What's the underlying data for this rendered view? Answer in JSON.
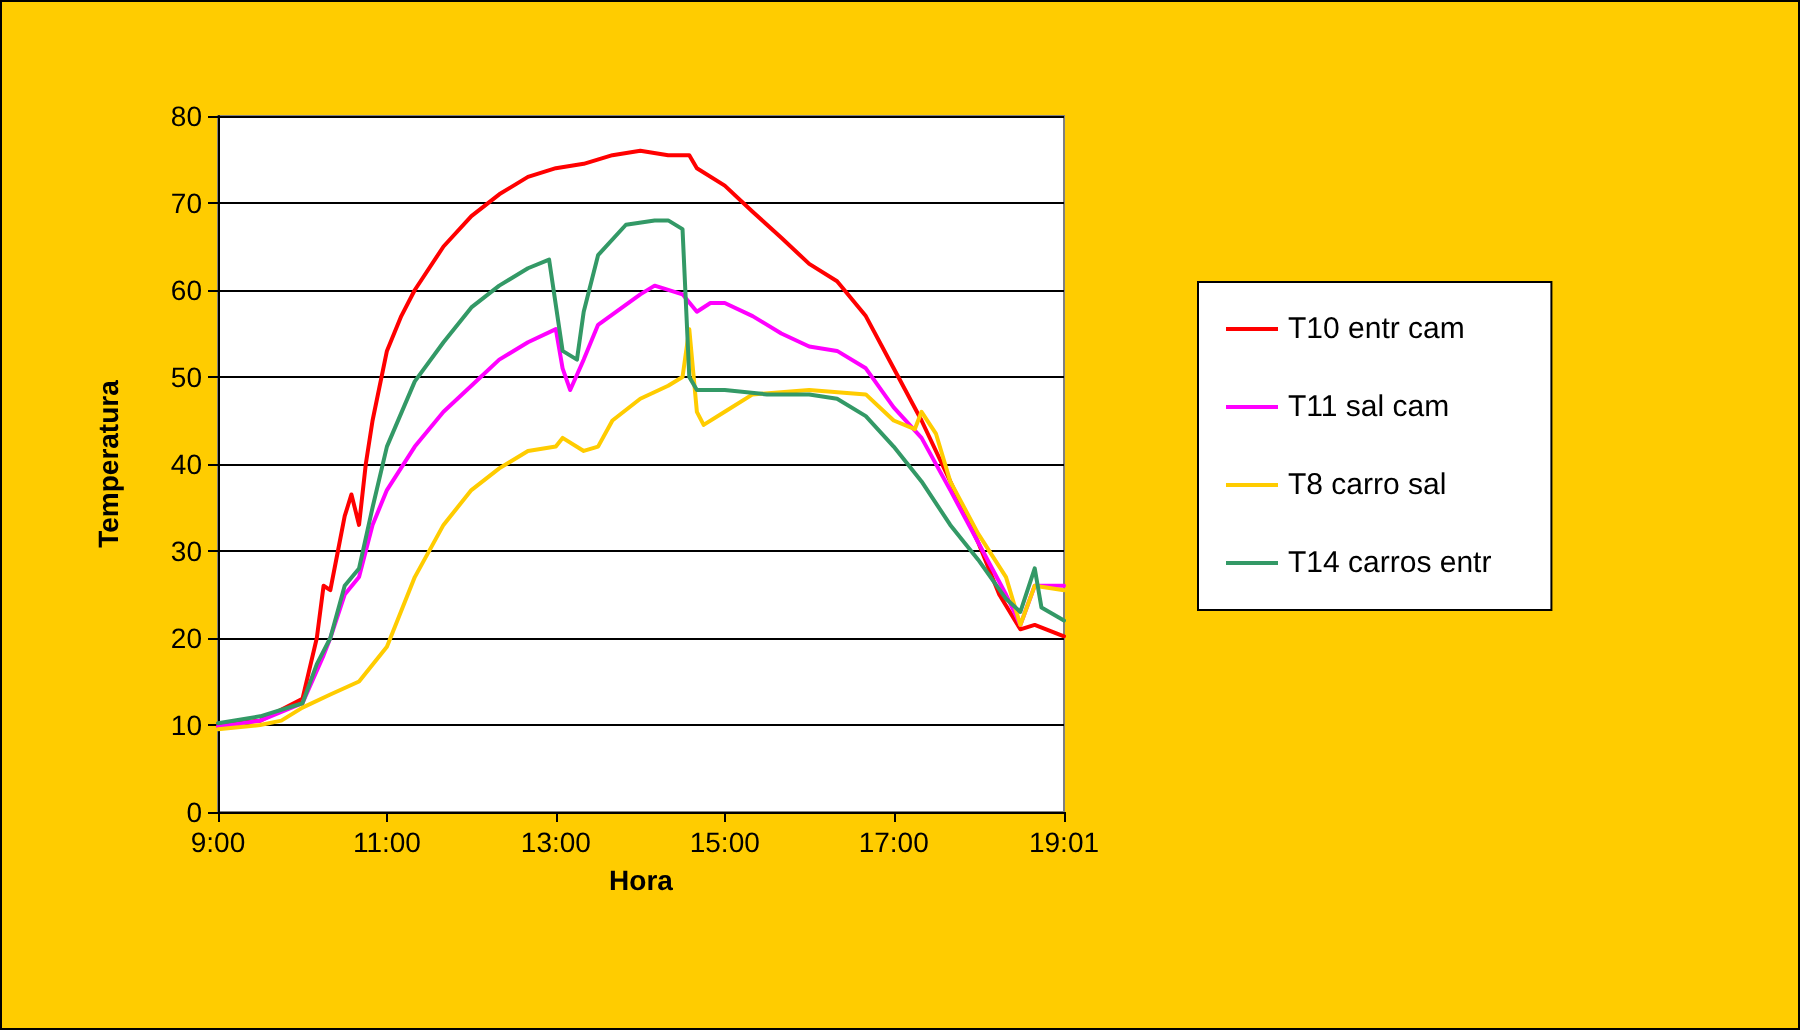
{
  "chart_data": {
    "type": "line",
    "xlabel": "Hora",
    "ylabel": "Temperatura",
    "xlim": [
      9,
      19.0167
    ],
    "xticks": [
      {
        "value": 9,
        "label": "9:00"
      },
      {
        "value": 11,
        "label": "11:00"
      },
      {
        "value": 13,
        "label": "13:00"
      },
      {
        "value": 15,
        "label": "15:00"
      },
      {
        "value": 17,
        "label": "17:00"
      },
      {
        "value": 19.0167,
        "label": "19:01"
      }
    ],
    "ylim": [
      0,
      80
    ],
    "yticks": [
      0,
      10,
      20,
      30,
      40,
      50,
      60,
      70,
      80
    ],
    "grid": "y",
    "legend": "right",
    "marker": "none",
    "line_style": "solid",
    "series": [
      {
        "name": "T10 entr cam",
        "color": "#ff0000",
        "x": [
          9,
          9.5,
          10,
          10.17,
          10.25,
          10.33,
          10.42,
          10.5,
          10.58,
          10.67,
          10.75,
          10.83,
          11,
          11.17,
          11.33,
          11.67,
          12,
          12.33,
          12.67,
          13,
          13.33,
          13.67,
          14,
          14.33,
          14.58,
          14.67,
          15,
          15.33,
          15.67,
          16,
          16.33,
          16.67,
          17,
          17.33,
          17.67,
          18,
          18.25,
          18.5,
          18.67,
          19.0167
        ],
        "values": [
          10,
          10.5,
          13,
          20,
          26,
          25.5,
          30,
          34,
          36.5,
          33,
          40,
          45,
          53,
          57,
          60,
          65,
          68.5,
          71,
          73,
          74,
          74.5,
          75.5,
          76,
          75.5,
          75.5,
          74,
          72,
          69,
          66,
          63,
          61,
          57,
          51,
          45,
          38,
          31,
          25,
          21,
          21.5,
          20.2
        ]
      },
      {
        "name": "T11 sal cam",
        "color": "#ff00ff",
        "x": [
          9,
          9.5,
          10,
          10.25,
          10.33,
          10.5,
          10.67,
          10.83,
          11,
          11.33,
          11.67,
          12,
          12.33,
          12.67,
          13,
          13.08,
          13.17,
          13.33,
          13.5,
          14,
          14.17,
          14.5,
          14.67,
          14.83,
          15,
          15.33,
          15.67,
          16,
          16.33,
          16.67,
          17,
          17.33,
          17.67,
          18,
          18.33,
          18.5,
          18.67,
          19.0167
        ],
        "values": [
          9.8,
          10.5,
          12.5,
          18,
          20,
          25,
          27,
          33,
          37,
          42,
          46,
          49,
          52,
          54,
          55.5,
          51,
          48.5,
          52,
          56,
          59.5,
          60.5,
          59.5,
          57.5,
          58.5,
          58.5,
          57,
          55,
          53.5,
          53,
          51,
          46.5,
          43,
          37,
          31,
          25,
          21.5,
          26,
          26
        ]
      },
      {
        "name": "T8 carro sal",
        "color": "#ffcc00",
        "x": [
          9,
          9.5,
          9.75,
          10,
          10.33,
          10.67,
          11,
          11.33,
          11.67,
          12,
          12.33,
          12.67,
          13,
          13.08,
          13.33,
          13.5,
          13.67,
          14,
          14.33,
          14.5,
          14.58,
          14.67,
          14.75,
          15,
          15.33,
          16,
          16.67,
          17,
          17.25,
          17.33,
          17.5,
          17.67,
          18,
          18.33,
          18.5,
          18.67,
          19.0167
        ],
        "values": [
          9.5,
          10,
          10.5,
          12,
          13.5,
          15,
          19,
          27,
          33,
          37,
          39.5,
          41.5,
          42,
          43,
          41.5,
          42,
          45,
          47.5,
          49,
          50,
          55.5,
          46,
          44.5,
          46,
          48,
          48.5,
          48,
          45,
          44,
          46,
          43.5,
          38,
          32,
          27,
          21.5,
          26,
          25.5
        ]
      },
      {
        "name": "T14 carros entr",
        "color": "#339966",
        "x": [
          9,
          9.5,
          10,
          10.17,
          10.33,
          10.5,
          10.67,
          10.83,
          11,
          11.33,
          11.67,
          12,
          12.33,
          12.67,
          12.92,
          13.08,
          13.25,
          13.33,
          13.5,
          13.83,
          14.17,
          14.33,
          14.5,
          14.58,
          14.67,
          15,
          15.5,
          16,
          16.33,
          16.67,
          17,
          17.33,
          17.67,
          18,
          18.33,
          18.5,
          18.67,
          18.75,
          19.0167
        ],
        "values": [
          10.2,
          11,
          12.5,
          17,
          20,
          26,
          28,
          35,
          42,
          49.5,
          54,
          58,
          60.5,
          62.5,
          63.5,
          53,
          52,
          57.5,
          64,
          67.5,
          68,
          68,
          67,
          50,
          48.5,
          48.5,
          48,
          48,
          47.5,
          45.5,
          42,
          38,
          33,
          29,
          24.5,
          23,
          28,
          23.5,
          22
        ]
      }
    ]
  }
}
